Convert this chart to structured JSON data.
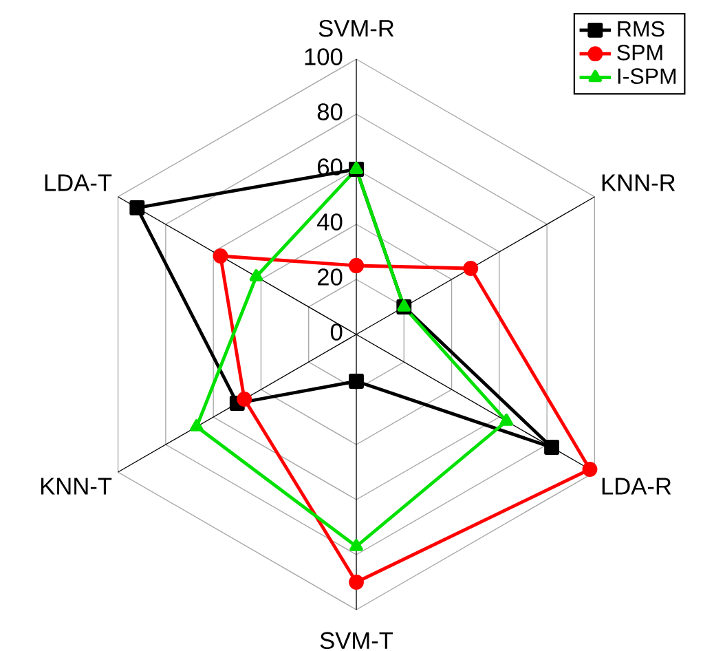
{
  "chart_data": {
    "type": "radar",
    "categories": [
      "SVM-R",
      "KNN-R",
      "LDA-R",
      "SVM-T",
      "KNN-T",
      "LDA-T"
    ],
    "series": [
      {
        "name": "RMS",
        "color": "#000000",
        "marker": "square",
        "values": [
          60,
          20,
          82,
          17,
          50,
          92
        ]
      },
      {
        "name": "SPM",
        "color": "#ff0000",
        "marker": "circle",
        "values": [
          25,
          48,
          98,
          90,
          47,
          57
        ]
      },
      {
        "name": "I-SPM",
        "color": "#00e000",
        "marker": "triangle",
        "values": [
          60,
          20,
          63,
          77,
          67,
          42
        ]
      }
    ],
    "ylim": [
      0,
      100
    ],
    "yticks": [
      0,
      20,
      40,
      60,
      80,
      100
    ],
    "grid": true,
    "legend": "top right"
  }
}
